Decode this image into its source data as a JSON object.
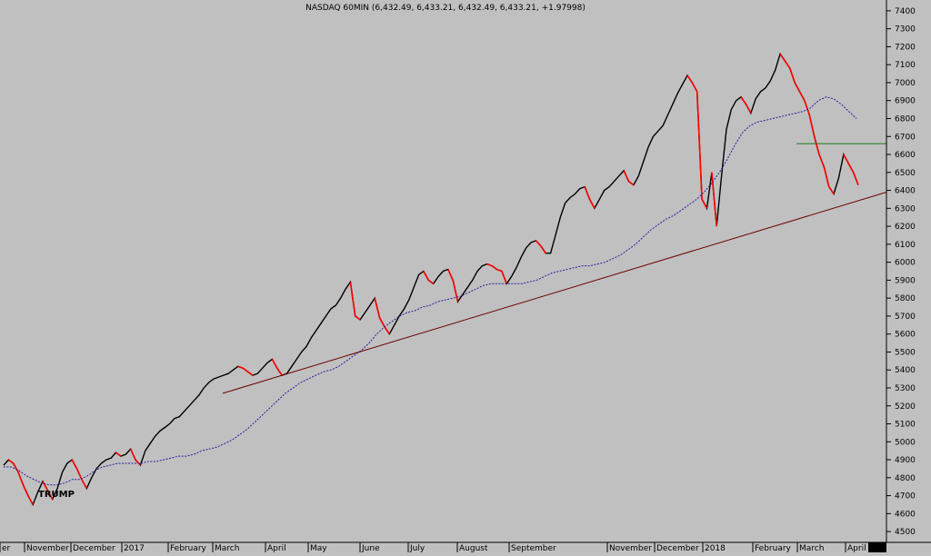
{
  "chart_data": {
    "type": "line",
    "title": "NASDAQ 60MIN (6,432.49, 6,433.21, 6,432.49, 6,433.21, +1.97998)",
    "ylim": [
      4450,
      7450
    ],
    "y_ticks": [
      4500,
      4600,
      4700,
      4800,
      4900,
      5000,
      5100,
      5200,
      5300,
      5400,
      5500,
      5600,
      5700,
      5800,
      5900,
      6000,
      6100,
      6200,
      6300,
      6400,
      6500,
      6600,
      6700,
      6800,
      6900,
      7000,
      7100,
      7200,
      7300,
      7400
    ],
    "x_ticks": [
      "er",
      "November",
      "December",
      "2017",
      "February",
      "March",
      "April",
      "May",
      "June",
      "July",
      "August",
      "September",
      "November",
      "December",
      "2018",
      "February",
      "March",
      "April"
    ],
    "series": [
      {
        "values": [
          4870,
          4900,
          4880,
          4830,
          4760,
          4700,
          4650,
          4720,
          4780,
          4730,
          4680,
          4740,
          4830,
          4880,
          4900,
          4850,
          4790,
          4740,
          4800,
          4850,
          4880,
          4900,
          4910,
          4940,
          4920,
          4930,
          4960,
          4900,
          4870,
          4950,
          4990,
          5030,
          5060,
          5080,
          5100,
          5130,
          5140,
          5170,
          5200,
          5230,
          5260,
          5300,
          5330,
          5350,
          5360,
          5370,
          5380,
          5400,
          5420,
          5410,
          5390,
          5370,
          5380,
          5410,
          5440,
          5460,
          5410,
          5370,
          5380,
          5420,
          5460,
          5500,
          5530,
          5580,
          5620,
          5660,
          5700,
          5740,
          5760,
          5800,
          5850,
          5890,
          5700,
          5680,
          5720,
          5760,
          5800,
          5690,
          5640,
          5600,
          5650,
          5700,
          5740,
          5790,
          5860,
          5930,
          5950,
          5900,
          5880,
          5920,
          5950,
          5960,
          5900,
          5780,
          5820,
          5860,
          5900,
          5950,
          5980,
          5990,
          5980,
          5960,
          5950,
          5880,
          5920,
          5970,
          6030,
          6080,
          6110,
          6120,
          6090,
          6050,
          6050,
          6150,
          6250,
          6330,
          6360,
          6380,
          6410,
          6420,
          6350,
          6300,
          6350,
          6400,
          6420,
          6450,
          6480,
          6510,
          6450,
          6430,
          6480,
          6560,
          6640,
          6700,
          6730,
          6760,
          6820,
          6880,
          6940,
          6990,
          7040,
          7000,
          6950,
          6350,
          6300,
          6500,
          6200,
          6480,
          6740,
          6850,
          6900,
          6920,
          6880,
          6830,
          6910,
          6950,
          6970,
          7010,
          7070,
          7160,
          7120,
          7080,
          7000,
          6950,
          6900,
          6820,
          6700,
          6600,
          6530,
          6420,
          6380,
          6470,
          6600,
          6550,
          6500,
          6430
        ],
        "ma_values": [
          4860,
          4860,
          4840,
          4810,
          4790,
          4770,
          4760,
          4760,
          4770,
          4790,
          4790,
          4810,
          4840,
          4860,
          4870,
          4880,
          4880,
          4880,
          4880,
          4890,
          4890,
          4900,
          4910,
          4920,
          4920,
          4930,
          4950,
          4960,
          4970,
          4990,
          5010,
          5040,
          5070,
          5110,
          5150,
          5190,
          5230,
          5270,
          5300,
          5330,
          5350,
          5370,
          5390,
          5400,
          5420,
          5450,
          5480,
          5510,
          5550,
          5600,
          5640,
          5670,
          5700,
          5720,
          5730,
          5750,
          5760,
          5780,
          5790,
          5800,
          5810,
          5830,
          5850,
          5870,
          5880,
          5880,
          5880,
          5880,
          5880,
          5890,
          5900,
          5920,
          5940,
          5950,
          5960,
          5970,
          5980,
          5980,
          5990,
          6000,
          6020,
          6040,
          6070,
          6100,
          6140,
          6180,
          6210,
          6240,
          6260,
          6290,
          6320,
          6350,
          6390,
          6440,
          6500,
          6570,
          6650,
          6720,
          6760,
          6780,
          6790,
          6800,
          6810,
          6820,
          6830,
          6840,
          6860,
          6900,
          6920,
          6910,
          6880,
          6840,
          6800
        ]
      }
    ],
    "annotations": [
      {
        "label": "TRUMP"
      }
    ],
    "colors": {
      "background": "#c0c0c0",
      "price_up": "#000000",
      "price_down": "#ff0000",
      "moving_average": "#2a1aa0",
      "trendline": "#6b0000",
      "horizontal_line": "#1a7a1a"
    }
  }
}
